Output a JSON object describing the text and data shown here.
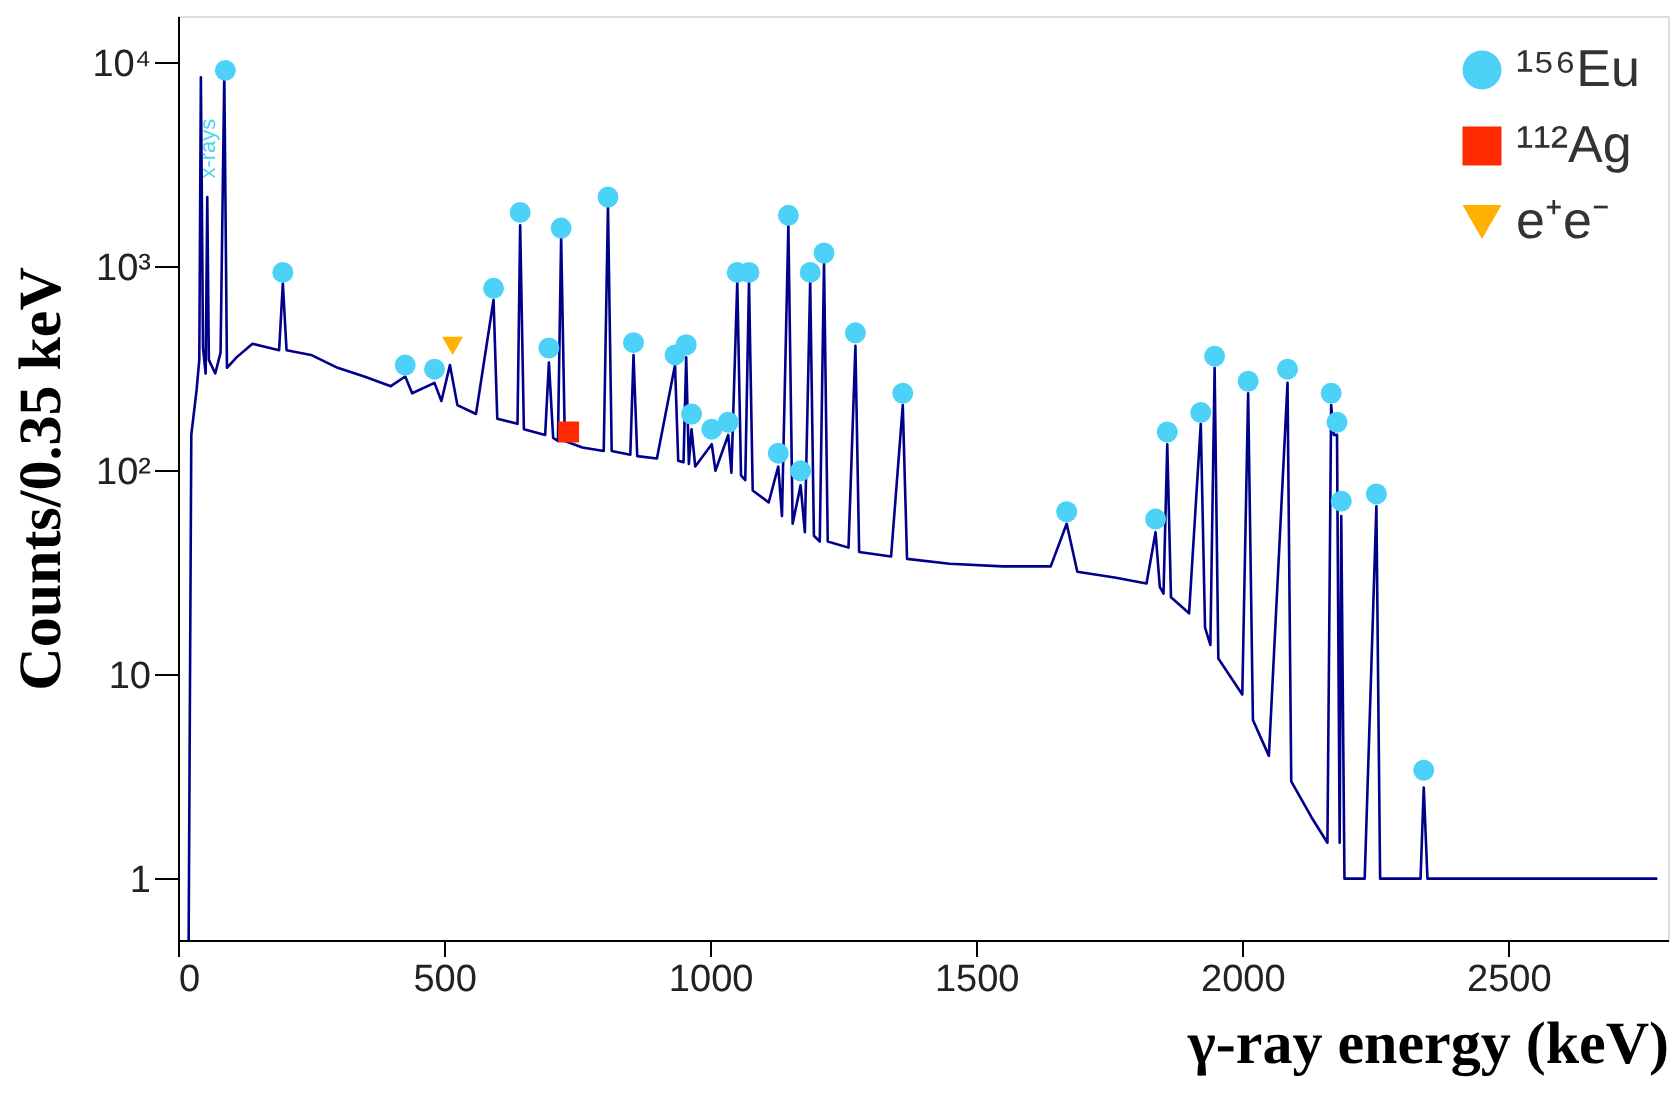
{
  "chart_data": {
    "type": "line",
    "xlabel": "γ-ray energy (keV)",
    "ylabel": "Counts/0.35 keV",
    "xlim": [
      0,
      2800
    ],
    "xticks": [
      0,
      500,
      1000,
      1500,
      2000,
      2500
    ],
    "ylim": [
      0.5,
      17000
    ],
    "yticks": [
      1,
      10,
      {
        "value": 100,
        "label": "10²"
      },
      {
        "value": 1000,
        "label": "10³"
      },
      {
        "value": 10000,
        "label": "10⁴"
      }
    ],
    "log": true,
    "grid": false,
    "legend": "top right",
    "annotations": [
      {
        "text": "x-rays",
        "x": 59,
        "y": 3800
      }
    ],
    "series": [
      {
        "color": "#00008b",
        "x": [
          20,
          25,
          35,
          40,
          43,
          47,
          52,
          55,
          58,
          70,
          80,
          87,
          92,
          110,
          140,
          190,
          197,
          204,
          250,
          300,
          350,
          400,
          427,
          440,
          482,
          495,
          511,
          525,
          560,
          593,
          600,
          638,
          643,
          650,
          690,
          697,
          705,
          714,
          720,
          727,
          760,
          800,
          808,
          815,
          850,
          856,
          863,
          900,
          934,
          940,
          950,
          955,
          960,
          965,
          972,
          1003,
          1010,
          1034,
          1040,
          1051,
          1058,
          1066,
          1073,
          1080,
          1110,
          1128,
          1135,
          1147,
          1155,
          1170,
          1178,
          1188,
          1195,
          1206,
          1214,
          1221,
          1260,
          1273,
          1280,
          1340,
          1362,
          1370,
          1450,
          1550,
          1640,
          1670,
          1690,
          1760,
          1820,
          1837,
          1845,
          1852,
          1859,
          1866,
          1900,
          1922,
          1930,
          1940,
          1948,
          1955,
          2000,
          2011,
          2020,
          2050,
          2085,
          2092,
          2130,
          2160,
          2167,
          2172,
          2178,
          2183,
          2186,
          2192,
          2230,
          2252,
          2259,
          2300,
          2335,
          2341,
          2348,
          2450,
          2550,
          2650,
          2780
        ],
        "values": [
          0.5,
          150,
          250,
          350,
          8500,
          400,
          300,
          2200,
          350,
          300,
          380,
          8800,
          320,
          360,
          420,
          390,
          830,
          390,
          370,
          320,
          290,
          260,
          290,
          240,
          270,
          220,
          330,
          210,
          190,
          690,
          180,
          170,
          1600,
          160,
          150,
          340,
          145,
          140,
          1400,
          140,
          130,
          125,
          2000,
          125,
          120,
          370,
          118,
          115,
          330,
          112,
          110,
          360,
          108,
          160,
          105,
          135,
          100,
          150,
          98,
          850,
          95,
          90,
          850,
          80,
          70,
          105,
          60,
          1600,
          55,
          85,
          50,
          850,
          48,
          45,
          1050,
          45,
          42,
          410,
          40,
          38,
          210,
          37,
          35,
          34,
          34,
          55,
          32,
          30,
          28,
          50,
          27,
          25,
          135,
          24,
          20,
          170,
          17,
          14,
          320,
          12,
          8,
          240,
          6,
          4,
          270,
          3,
          2,
          1.5,
          210,
          150,
          150,
          1.5,
          60,
          1,
          1,
          67,
          1,
          1,
          1,
          2.8,
          1,
          1,
          1,
          1,
          1
        ]
      },
      {
        "type": "scatter",
        "name": "¹⁵⁶Eu",
        "color": "#4dd2f7",
        "marker": "circle",
        "x": [
          89,
          197,
          427,
          482,
          593,
          643,
          697,
          720,
          808,
          856,
          934,
          955,
          965,
          1003,
          1034,
          1051,
          1073,
          1128,
          1147,
          1170,
          1188,
          1214,
          1273,
          1362,
          1670,
          1837,
          1859,
          1922,
          1948,
          2011,
          2085,
          2167,
          2178,
          2186,
          2252,
          2341
        ],
        "values": [
          9200,
          940,
          330,
          315,
          785,
          1850,
          400,
          1550,
          2200,
          425,
          370,
          415,
          190,
          160,
          173,
          940,
          940,
          122,
          1790,
          100,
          940,
          1170,
          475,
          240,
          63,
          58,
          155,
          193,
          365,
          275,
          315,
          240,
          173,
          71,
          77,
          3.4
        ]
      },
      {
        "type": "scatter",
        "name": "¹¹²Ag",
        "color": "#ff2a00",
        "marker": "square",
        "x": [
          734
        ],
        "values": [
          155
        ]
      },
      {
        "type": "scatter",
        "name": "e⁺e⁻",
        "color": "#ffb000",
        "marker": "triangle",
        "x": [
          516
        ],
        "values": [
          410
        ]
      }
    ]
  }
}
